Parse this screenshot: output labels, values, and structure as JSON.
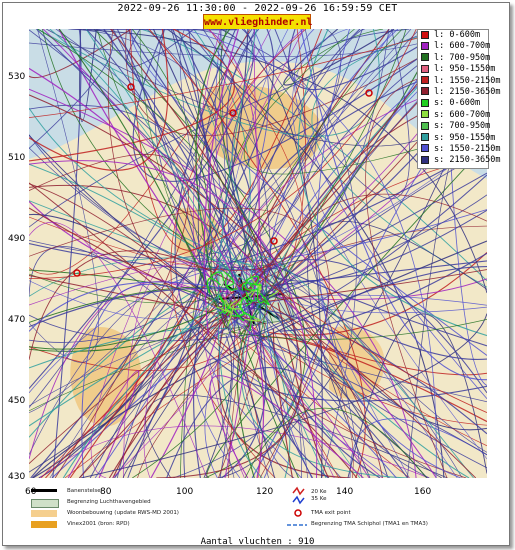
{
  "header": {
    "period": "2022-09-26 11:30:00 - 2022-09-26 16:59:59 CET",
    "site_badge": "www.vlieghinder.nl"
  },
  "axes": {
    "y_ticks": [
      "530",
      "510",
      "490",
      "470",
      "450",
      "430"
    ],
    "x_ticks": [
      "60",
      "80",
      "100",
      "120",
      "140",
      "160"
    ]
  },
  "legend": {
    "items": [
      {
        "label": "l: 0-600m",
        "color": "#d01010"
      },
      {
        "label": "l: 600-700m",
        "color": "#a020c0"
      },
      {
        "label": "l: 700-950m",
        "color": "#207020"
      },
      {
        "label": "l: 950-1550m",
        "color": "#e06080"
      },
      {
        "label": "l: 1550-2150m",
        "color": "#c02020"
      },
      {
        "label": "l: 2150-3650m",
        "color": "#902030"
      },
      {
        "label": "s: 0-600m",
        "color": "#20d020"
      },
      {
        "label": "s: 600-700m",
        "color": "#90e040"
      },
      {
        "label": "s: 700-950m",
        "color": "#50c050"
      },
      {
        "label": "s: 950-1550m",
        "color": "#30a0a0"
      },
      {
        "label": "s: 1550-2150m",
        "color": "#5050d0"
      },
      {
        "label": "s: 2150-3650m",
        "color": "#303080"
      }
    ]
  },
  "map_legend": {
    "runway": "Banenstelsel",
    "airport_boundary": "Begrenzing Luchthavengebied",
    "housing": "Woonbebouwing (update RWS-MD 2001)",
    "vinex": "Vinex2001 (bron: RPD)",
    "wind_20": "20 Ke",
    "wind_35": "35 Ke",
    "tma_exit": "TMA exit point",
    "tma_boundary": "Begrenzing TMA Schiphol  (TMA1 en TMA3)"
  },
  "footer": {
    "count_text": "Aantal vluchten : 910"
  },
  "colors": {
    "sea": "#c9dde6",
    "land": "#f2e8c8",
    "housing": "#f0c070",
    "tracks_dominant": "#3c3c9c"
  }
}
